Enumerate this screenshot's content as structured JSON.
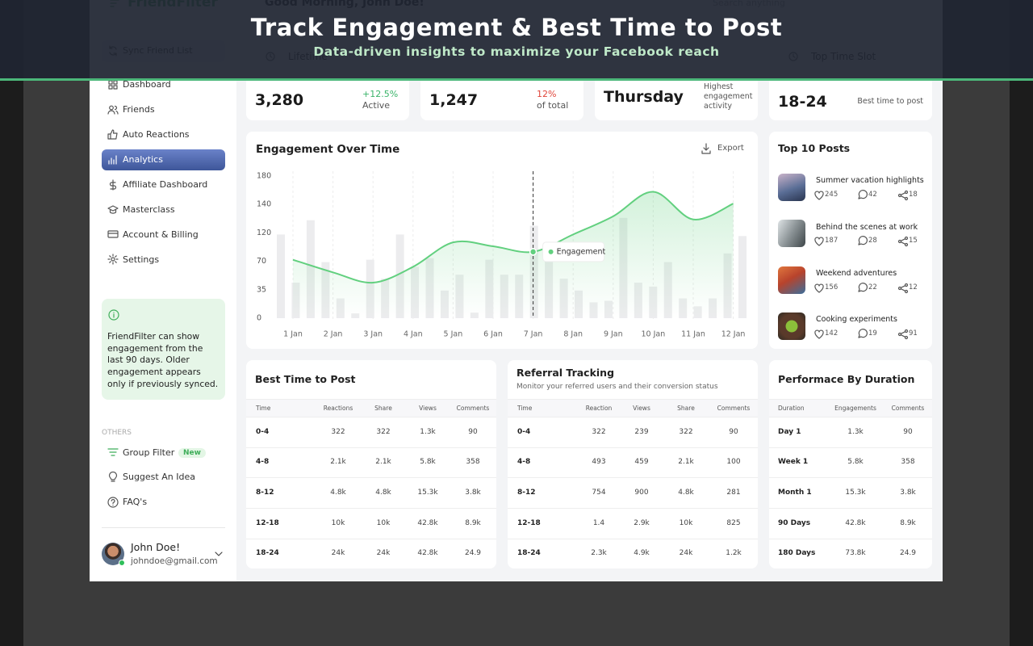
{
  "banner": {
    "title": "Track Engagement & Best Time to Post",
    "subtitle": "Data-driven insights to maximize your Facebook reach"
  },
  "header": {
    "logo": "FriendFilter",
    "greeting": "Good Morning, John Doe!",
    "search": "Search anything"
  },
  "sidebar": {
    "sync": "Sync Friend List",
    "nav": [
      {
        "label": "Dashboard"
      },
      {
        "label": "Friends"
      },
      {
        "label": "Auto Reactions"
      },
      {
        "label": "Analytics",
        "active": true
      },
      {
        "label": "Affiliate Dashboard"
      },
      {
        "label": "Masterclass"
      },
      {
        "label": "Account & Billing"
      },
      {
        "label": "Settings"
      }
    ],
    "info": "FriendFilter can show engagement from the last 90 days. Older engagement appears only if previously synced.",
    "others_label": "OTHERS",
    "others": [
      {
        "label": "Group Filter",
        "badge": "New"
      },
      {
        "label": "Suggest An Idea"
      },
      {
        "label": "FAQ's"
      }
    ],
    "user": {
      "name": "John Doe!",
      "email": "johndoe@gmail.com"
    }
  },
  "stats": [
    {
      "heading": "Lifetime",
      "value": "3,280",
      "change": "+12.5%",
      "note": "Active",
      "tone": "up"
    },
    {
      "value": "1,247",
      "change": "12%",
      "note": "of total",
      "tone": "down"
    },
    {
      "value": "Thursday",
      "note": "Highest engagement activity"
    },
    {
      "heading": "Top Time Slot",
      "value": "18-24",
      "note": "Best time to post"
    }
  ],
  "chart_data": {
    "type": "line",
    "title": "Engagement Over Time",
    "export": "Export",
    "categories": [
      "1 Jan",
      "2 Jan",
      "3 Jan",
      "4 Jan",
      "5 Jan",
      "6 Jan",
      "7 Jan",
      "8 Jan",
      "9 Jan",
      "10 Jan",
      "11 Jan",
      "12 Jan"
    ],
    "series": [
      {
        "name": "Engagement",
        "color": "#62d07f",
        "values": [
          74,
          58,
          45,
          65,
          96,
          91,
          84,
          106,
          129,
          160,
          125,
          145
        ]
      }
    ],
    "bar_values": [
      106,
      45,
      124,
      71,
      25,
      6,
      74,
      50,
      106,
      65,
      76,
      35,
      55,
      7,
      74,
      55,
      55,
      117,
      74,
      50,
      35,
      20,
      22,
      127,
      45,
      40,
      71,
      25,
      15,
      25,
      82,
      104
    ],
    "bar_color": "#ececee",
    "ylim": [
      0,
      180
    ],
    "y_axis_labels": [
      "180",
      "140",
      "120",
      "70",
      "35",
      "0"
    ],
    "grid": true
  },
  "posts": {
    "title": "Top 10 Posts",
    "items": [
      {
        "title": "Summer vacation highlights",
        "likes": 245,
        "comments": 42,
        "shares": 18
      },
      {
        "title": "Behind the scenes at work",
        "likes": 187,
        "comments": 28,
        "shares": 15
      },
      {
        "title": "Weekend adventures",
        "likes": 156,
        "comments": 22,
        "shares": 12
      },
      {
        "title": "Cooking experiments",
        "likes": 142,
        "comments": 19,
        "shares": 91
      }
    ]
  },
  "tables": [
    {
      "title": "Best Time to Post",
      "columns": [
        "Time",
        "Reactions",
        "Share",
        "Views",
        "Comments"
      ],
      "rows": [
        [
          "0-4",
          "322",
          "322",
          "1.3k",
          "90"
        ],
        [
          "4-8",
          "2.1k",
          "2.1k",
          "5.8k",
          "358"
        ],
        [
          "8-12",
          "4.8k",
          "4.8k",
          "15.3k",
          "3.8k"
        ],
        [
          "12-18",
          "10k",
          "10k",
          "42.8k",
          "8.9k"
        ],
        [
          "18-24",
          "24k",
          "24k",
          "42.8k",
          "24.9"
        ]
      ]
    },
    {
      "title": "Referral Tracking",
      "subtitle": "Monitor your referred users and their conversion status",
      "columns": [
        "Time",
        "Reaction",
        "Views",
        "Share",
        "Comments"
      ],
      "rows": [
        [
          "0-4",
          "322",
          "239",
          "322",
          "90"
        ],
        [
          "4-8",
          "493",
          "459",
          "2.1k",
          "100"
        ],
        [
          "8-12",
          "754",
          "900",
          "4.8k",
          "281"
        ],
        [
          "12-18",
          "1.4",
          "2.9k",
          "10k",
          "825"
        ],
        [
          "18-24",
          "2.3k",
          "4.9k",
          "24k",
          "1.2k"
        ]
      ]
    },
    {
      "title": "Performace By Duration",
      "columns": [
        "Duration",
        "Engagements",
        "Comments"
      ],
      "rows": [
        [
          "Day 1",
          "1.3k",
          "90"
        ],
        [
          "Week 1",
          "5.8k",
          "358"
        ],
        [
          "Month 1",
          "15.3k",
          "3.8k"
        ],
        [
          "90 Days",
          "42.8k",
          "8.9k"
        ],
        [
          "180 Days",
          "73.8k",
          "24.9"
        ]
      ]
    }
  ]
}
